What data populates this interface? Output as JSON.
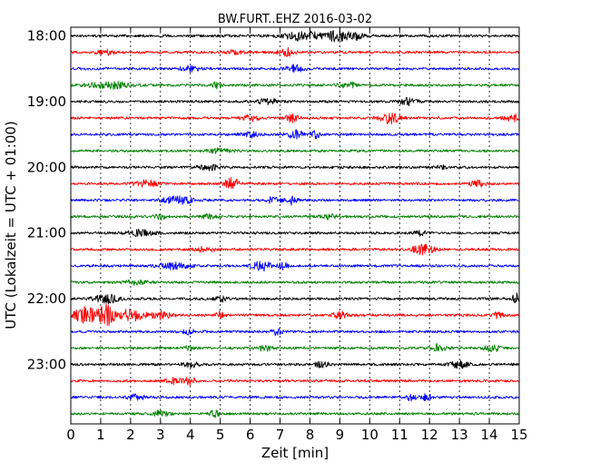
{
  "chart_data": {
    "type": "line",
    "title": "BW.FURT..EHZ 2016-03-02",
    "xlabel": "Zeit  [min]",
    "ylabel": "UTC (Lokalzeit = UTC + 01:00)",
    "xlim": [
      0,
      15
    ],
    "x_ticks": [
      "0",
      "1",
      "2",
      "3",
      "4",
      "5",
      "6",
      "7",
      "8",
      "9",
      "10",
      "11",
      "12",
      "13",
      "14",
      "15"
    ],
    "y_tick_labels": [
      "18:00",
      "19:00",
      "20:00",
      "21:00",
      "22:00",
      "23:00"
    ],
    "traces_per_hour": 4,
    "trace_colors": [
      "#000000",
      "#ff0000",
      "#0000ff",
      "#008000"
    ],
    "grid": true,
    "series": [
      {
        "start": "18:00",
        "events": [
          [
            7.8,
            0.55,
            1.4
          ],
          [
            8.9,
            0.7,
            0.6
          ],
          [
            9.5,
            0.55,
            0.5
          ]
        ]
      },
      {
        "start": "18:15",
        "events": [
          [
            1.2,
            0.3,
            0.6
          ],
          [
            5.5,
            0.3,
            0.5
          ],
          [
            7.2,
            0.5,
            0.5
          ]
        ]
      },
      {
        "start": "18:30",
        "events": [
          [
            4.0,
            0.35,
            0.6
          ],
          [
            7.5,
            0.45,
            0.6
          ]
        ]
      },
      {
        "start": "18:45",
        "events": [
          [
            1.3,
            0.4,
            1.4
          ],
          [
            4.9,
            0.45,
            0.3
          ],
          [
            9.3,
            0.4,
            0.6
          ]
        ]
      },
      {
        "start": "19:00",
        "events": [
          [
            6.6,
            0.35,
            0.7
          ],
          [
            11.3,
            0.4,
            0.6
          ]
        ]
      },
      {
        "start": "19:15",
        "events": [
          [
            6.0,
            0.35,
            0.6
          ],
          [
            7.4,
            0.55,
            0.4
          ],
          [
            10.7,
            0.7,
            0.6
          ],
          [
            14.8,
            0.4,
            0.6
          ]
        ]
      },
      {
        "start": "19:30",
        "events": [
          [
            6.0,
            0.35,
            0.6
          ],
          [
            7.5,
            0.55,
            0.5
          ],
          [
            8.2,
            0.5,
            0.3
          ]
        ]
      },
      {
        "start": "19:45",
        "events": [
          [
            5.0,
            0.3,
            0.7
          ]
        ]
      },
      {
        "start": "20:00",
        "events": [
          [
            4.6,
            0.4,
            0.6
          ],
          [
            12.4,
            0.35,
            0.3
          ]
        ]
      },
      {
        "start": "20:15",
        "events": [
          [
            2.5,
            0.4,
            0.8
          ],
          [
            5.4,
            0.75,
            0.5
          ],
          [
            13.6,
            0.4,
            0.5
          ]
        ]
      },
      {
        "start": "20:30",
        "events": [
          [
            3.6,
            0.45,
            1.0
          ],
          [
            6.8,
            0.4,
            0.5
          ],
          [
            7.4,
            0.55,
            0.3
          ]
        ]
      },
      {
        "start": "20:45",
        "events": [
          [
            3.0,
            0.3,
            0.5
          ],
          [
            4.6,
            0.3,
            0.5
          ],
          [
            8.6,
            0.3,
            0.6
          ]
        ]
      },
      {
        "start": "21:00",
        "events": [
          [
            2.3,
            0.35,
            1.0
          ],
          [
            11.7,
            0.3,
            0.5
          ]
        ]
      },
      {
        "start": "21:15",
        "events": [
          [
            4.5,
            0.35,
            0.6
          ],
          [
            11.8,
            0.6,
            0.7
          ]
        ]
      },
      {
        "start": "21:30",
        "events": [
          [
            3.4,
            0.4,
            1.0
          ],
          [
            6.4,
            0.6,
            0.6
          ],
          [
            7.1,
            0.45,
            0.3
          ]
        ]
      },
      {
        "start": "21:45",
        "events": [
          [
            2.2,
            0.25,
            0.8
          ]
        ]
      },
      {
        "start": "22:00",
        "events": [
          [
            1.2,
            0.55,
            0.8
          ],
          [
            5.0,
            0.35,
            0.4
          ],
          [
            14.9,
            0.6,
            0.3
          ]
        ]
      },
      {
        "start": "22:15",
        "events": [
          [
            0.5,
            1.0,
            0.8
          ],
          [
            1.2,
            1.3,
            0.5
          ],
          [
            2.0,
            0.75,
            0.8
          ],
          [
            3.0,
            0.5,
            0.8
          ],
          [
            5.0,
            0.45,
            0.3
          ],
          [
            9.0,
            0.4,
            0.5
          ],
          [
            14.3,
            0.4,
            0.3
          ]
        ]
      },
      {
        "start": "22:30",
        "events": [
          [
            3.9,
            0.3,
            0.5
          ],
          [
            6.9,
            0.45,
            0.3
          ]
        ]
      },
      {
        "start": "22:45",
        "events": [
          [
            4.0,
            0.3,
            0.4
          ],
          [
            6.5,
            0.35,
            0.5
          ],
          [
            12.3,
            0.5,
            0.5
          ],
          [
            14.1,
            0.45,
            0.5
          ]
        ]
      },
      {
        "start": "23:00",
        "events": [
          [
            4.0,
            0.35,
            0.5
          ],
          [
            8.4,
            0.35,
            0.5
          ],
          [
            13.0,
            0.45,
            0.6
          ]
        ]
      },
      {
        "start": "23:15",
        "events": [
          [
            3.4,
            0.35,
            0.6
          ],
          [
            4.0,
            0.45,
            0.4
          ]
        ]
      },
      {
        "start": "23:30",
        "events": [
          [
            2.2,
            0.4,
            0.5
          ],
          [
            11.4,
            0.5,
            0.3
          ],
          [
            11.9,
            0.4,
            0.3
          ]
        ]
      },
      {
        "start": "23:45",
        "events": [
          [
            3.0,
            0.35,
            0.5
          ],
          [
            4.8,
            0.45,
            0.3
          ]
        ]
      }
    ]
  }
}
